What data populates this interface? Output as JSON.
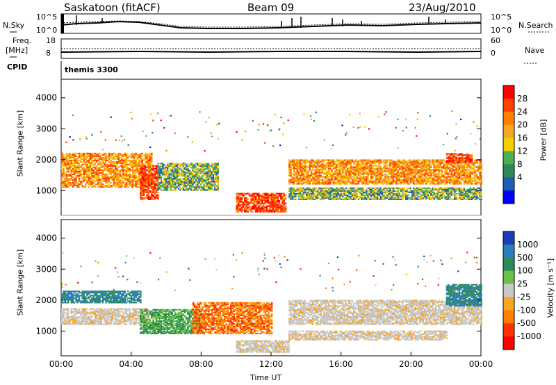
{
  "header": {
    "station": "Saskatoon (fitACF)",
    "beam": "Beam 09",
    "date": "23/Aug/2010"
  },
  "top_panels": {
    "nsky_label": "N.Sky",
    "nsky_ticks": [
      "10^5",
      "10^0"
    ],
    "nsearch_label": "N.Search",
    "nsearch_ticks": [
      "10^5",
      "10^0"
    ],
    "freq_label_1": "Freq.",
    "freq_label_2": "[MHz]",
    "freq_ticks": [
      "18",
      "8"
    ],
    "nave_label": "Nave",
    "nave_ticks": [
      "60",
      "0"
    ],
    "cpid_label": "CPID",
    "cpid_value": "themis 3300"
  },
  "chart_data": [
    {
      "type": "heatmap",
      "title": "",
      "ylabel": "Slant Range [km]",
      "ylim": [
        200,
        4600
      ],
      "yticks": [
        "4000",
        "3000",
        "2000",
        "1000"
      ],
      "xlim": [
        "00:00",
        "00:00"
      ],
      "colorbar": {
        "label": "Power [dB]",
        "ticks": [
          "28",
          "24",
          "20",
          "16",
          "12",
          "8",
          "4"
        ],
        "colors": [
          "#ff0000",
          "#ff4000",
          "#ff8000",
          "#f5a623",
          "#f0d000",
          "#4caf50",
          "#2e8b57",
          "#1a5fb4",
          "#0000ff"
        ]
      },
      "bands": [
        {
          "t_start": 0.0,
          "t_end": 5.2,
          "range_low": 1100,
          "range_high": 2200,
          "level": "high"
        },
        {
          "t_start": 4.5,
          "t_end": 5.5,
          "range_low": 700,
          "range_high": 1800,
          "level": "max"
        },
        {
          "t_start": 5.5,
          "t_end": 9.0,
          "range_low": 1000,
          "range_high": 1900,
          "level": "mid"
        },
        {
          "t_start": 10.0,
          "t_end": 12.8,
          "range_low": 300,
          "range_high": 900,
          "level": "max"
        },
        {
          "t_start": 13.0,
          "t_end": 24.0,
          "range_low": 1200,
          "range_high": 2000,
          "level": "high"
        },
        {
          "t_start": 13.0,
          "t_end": 24.0,
          "range_low": 700,
          "range_high": 1100,
          "level": "mid"
        },
        {
          "t_start": 22.0,
          "t_end": 23.5,
          "range_low": 1900,
          "range_high": 2200,
          "level": "max"
        }
      ]
    },
    {
      "type": "heatmap",
      "title": "",
      "ylabel": "Slant Range [km]",
      "ylim": [
        200,
        4600
      ],
      "yticks": [
        "4000",
        "3000",
        "2000",
        "1000"
      ],
      "xlabel": "Time UT",
      "xticks": [
        "00:00",
        "04:00",
        "08:00",
        "12:00",
        "16:00",
        "20:00",
        "00:00"
      ],
      "colorbar": {
        "label": "Velocity [m s⁻¹]",
        "ticks": [
          "1000",
          "500",
          "100",
          "25",
          "-25",
          "-100",
          "-500",
          "-1000"
        ],
        "colors": [
          "#1a3fb4",
          "#2a7dbf",
          "#2e8b57",
          "#6cc04a",
          "#c8c8c8",
          "#f5a623",
          "#ff7f00",
          "#ff3000",
          "#ff0000"
        ]
      },
      "bands": [
        {
          "t_start": 0.0,
          "t_end": 4.5,
          "range_low": 1900,
          "range_high": 2300,
          "level": "pos"
        },
        {
          "t_start": 0.0,
          "t_end": 5.0,
          "range_low": 1200,
          "range_high": 1700,
          "level": "zero"
        },
        {
          "t_start": 4.5,
          "t_end": 8.0,
          "range_low": 900,
          "range_high": 1700,
          "level": "pos_small"
        },
        {
          "t_start": 7.5,
          "t_end": 12.0,
          "range_low": 900,
          "range_high": 1900,
          "level": "neg"
        },
        {
          "t_start": 10.0,
          "t_end": 13.0,
          "range_low": 300,
          "range_high": 700,
          "level": "zero"
        },
        {
          "t_start": 13.0,
          "t_end": 24.0,
          "range_low": 1200,
          "range_high": 2000,
          "level": "zero"
        },
        {
          "t_start": 13.0,
          "t_end": 22.0,
          "range_low": 700,
          "range_high": 1000,
          "level": "zero"
        },
        {
          "t_start": 22.0,
          "t_end": 24.0,
          "range_low": 1800,
          "range_high": 2500,
          "level": "pos"
        }
      ]
    }
  ]
}
